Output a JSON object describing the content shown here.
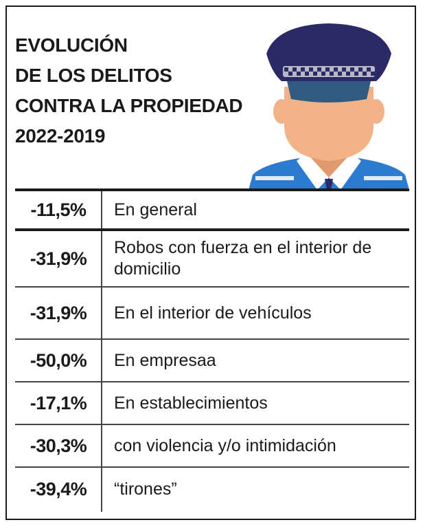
{
  "title_lines": [
    "EVOLUCIÓN",
    "DE LOS DELITOS",
    "CONTRA LA PROPIEDAD",
    "2022-2019"
  ],
  "colors": {
    "cap_navy": "#2b2a66",
    "cap_band": "#b8b8c9",
    "visor": "#2f5a82",
    "skin": "#f1b287",
    "skin_shadow": "#e09a6e",
    "shirt_blue": "#2c7bd0",
    "collar": "#ffffff",
    "text": "#1a1a1a"
  },
  "icon": "police-officer-illustration",
  "chart_data": {
    "type": "table",
    "columns": [
      "change",
      "category"
    ],
    "rows": [
      {
        "change": "-11,5%",
        "value": -11.5,
        "category": "En general"
      },
      {
        "change": "-31,9%",
        "value": -31.9,
        "category": "Robos con fuerza en el interior de domicilio"
      },
      {
        "change": "-31,9%",
        "value": -31.9,
        "category": "En el interior de vehículos"
      },
      {
        "change": "-50,0%",
        "value": -50.0,
        "category": "En empresaa"
      },
      {
        "change": "-17,1%",
        "value": -17.1,
        "category": "En establecimientos"
      },
      {
        "change": "-30,3%",
        "value": -30.3,
        "category": "con violencia y/o intimidación"
      },
      {
        "change": "-39,4%",
        "value": -39.4,
        "category": "“tirones”"
      }
    ]
  }
}
